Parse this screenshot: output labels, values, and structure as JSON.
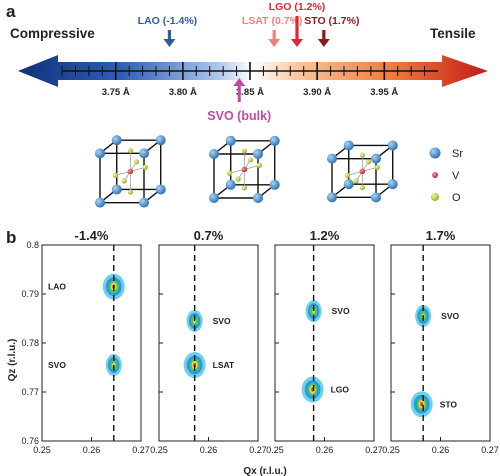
{
  "panel_labels": {
    "a": "a",
    "b": "b"
  },
  "strain_bar": {
    "left_label": "Compressive",
    "right_label": "Tensile",
    "unit": "Å",
    "ticks": [
      {
        "value": 3.75,
        "label": "3.75 Å"
      },
      {
        "value": 3.8,
        "label": "3.80 Å"
      },
      {
        "value": 3.85,
        "label": "3.85 Å"
      },
      {
        "value": 3.9,
        "label": "3.90 Å"
      },
      {
        "value": 3.95,
        "label": "3.95 Å"
      }
    ],
    "range": [
      3.71,
      3.99
    ],
    "minor_step": 0.01,
    "substrates": [
      {
        "label": "LAO (-1.4%)",
        "value": 3.79,
        "color": "#2e5d9e"
      },
      {
        "label": "LSAT (0.7%)",
        "value": 3.868,
        "color": "#f08080"
      },
      {
        "label": "LGO (1.2%)",
        "value": 3.885,
        "color": "#e0262e"
      },
      {
        "label": "STO (1.7%)",
        "value": 3.905,
        "color": "#8b1a1a"
      }
    ],
    "bulk": {
      "label": "SVO (bulk)",
      "value": 3.842,
      "color": "#c04aa8"
    }
  },
  "legend": {
    "items": [
      {
        "label": "Sr",
        "color": "#3a87c8"
      },
      {
        "label": "V",
        "color": "#d43a3a"
      },
      {
        "label": "O",
        "color": "#c8d43a"
      }
    ]
  },
  "chart_data": [
    {
      "type": "heatmap",
      "title": "-1.4%",
      "xlabel": "",
      "ylabel": "Qz (r.l.u.)",
      "xlim": [
        0.25,
        0.27
      ],
      "ylim": [
        0.76,
        0.8
      ],
      "dashed_x": 0.2645,
      "peaks": [
        {
          "label": "LAO",
          "qx": 0.2645,
          "qz": 0.7915
        },
        {
          "label": "SVO",
          "qx": 0.2645,
          "qz": 0.7755
        }
      ]
    },
    {
      "type": "heatmap",
      "title": "0.7%",
      "xlabel": "",
      "ylabel": "",
      "xlim": [
        0.25,
        0.27
      ],
      "ylim": [
        0.76,
        0.8
      ],
      "dashed_x": 0.2572,
      "peaks": [
        {
          "label": "SVO",
          "qx": 0.2572,
          "qz": 0.7845
        },
        {
          "label": "LSAT",
          "qx": 0.2572,
          "qz": 0.7755
        }
      ]
    },
    {
      "type": "heatmap",
      "title": "1.2%",
      "xlabel": "Qx (r.l.u.)",
      "ylabel": "",
      "xlim": [
        0.25,
        0.27
      ],
      "ylim": [
        0.76,
        0.8
      ],
      "dashed_x": 0.2578,
      "peaks": [
        {
          "label": "SVO",
          "qx": 0.2578,
          "qz": 0.7865
        },
        {
          "label": "LGO",
          "qx": 0.2576,
          "qz": 0.7705
        }
      ]
    },
    {
      "type": "heatmap",
      "title": "1.7%",
      "xlabel": "",
      "ylabel": "",
      "xlim": [
        0.25,
        0.27
      ],
      "ylim": [
        0.76,
        0.8
      ],
      "dashed_x": 0.2565,
      "peaks": [
        {
          "label": "SVO",
          "qx": 0.2565,
          "qz": 0.7855
        },
        {
          "label": "STO",
          "qx": 0.2562,
          "qz": 0.7675
        }
      ]
    }
  ],
  "axes": {
    "y_ticks": [
      "0.8",
      "0.79",
      "0.78",
      "0.77",
      "0.76"
    ],
    "y_values": [
      0.8,
      0.79,
      0.78,
      0.77,
      0.76
    ],
    "x_ticks": [
      "0.25",
      "0.26",
      "0.27"
    ],
    "x_values": [
      0.25,
      0.26,
      0.27
    ],
    "ylabel": "Qz (r.l.u.)",
    "xlabel": "Qx (r.l.u.)"
  }
}
